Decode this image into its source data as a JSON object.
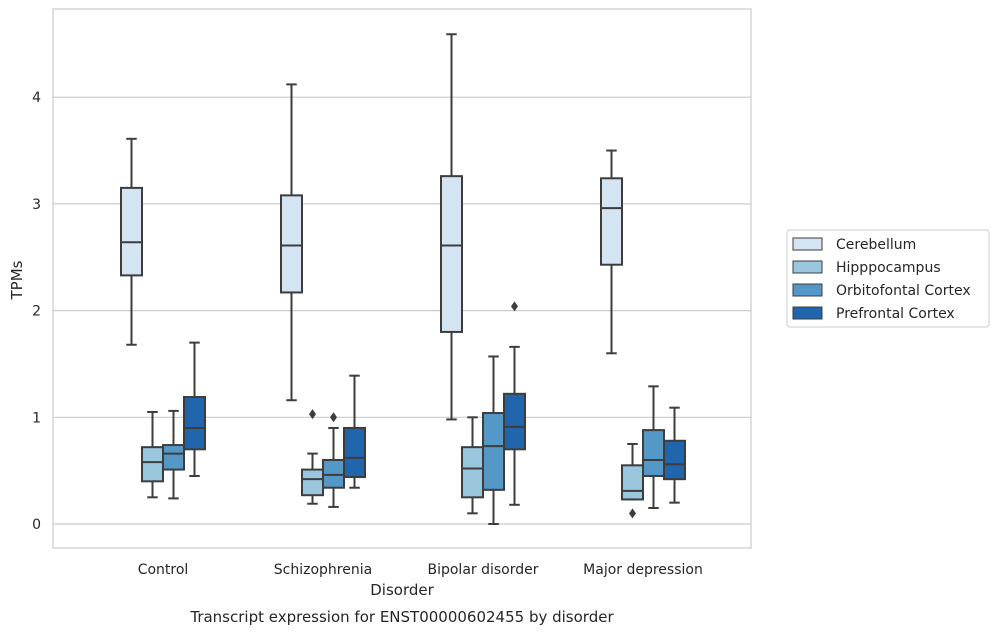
{
  "chart_data": {
    "type": "box",
    "title": "",
    "caption": "Transcript expression for ENST00000602455 by disorder",
    "xlabel": "Disorder",
    "ylabel": "TPMs",
    "ylim": [
      -0.22,
      4.85
    ],
    "yticks": [
      "0",
      "1",
      "2",
      "3",
      "4"
    ],
    "grid": "horizontal",
    "legend_position": "right",
    "categories": [
      "Control",
      "Schizophrenia",
      "Bipolar disorder",
      "Major depression"
    ],
    "series": [
      {
        "name": "Cerebellum",
        "color": "#d4e4f2",
        "boxes": [
          {
            "whisker_low": 1.68,
            "q1": 2.33,
            "median": 2.64,
            "q3": 3.15,
            "whisker_high": 3.61,
            "outliers": []
          },
          {
            "whisker_low": 1.16,
            "q1": 2.17,
            "median": 2.61,
            "q3": 3.08,
            "whisker_high": 4.12,
            "outliers": []
          },
          {
            "whisker_low": 0.98,
            "q1": 1.8,
            "median": 2.61,
            "q3": 3.26,
            "whisker_high": 4.59,
            "outliers": []
          },
          {
            "whisker_low": 1.6,
            "q1": 2.43,
            "median": 2.96,
            "q3": 3.24,
            "whisker_high": 3.5,
            "outliers": []
          }
        ]
      },
      {
        "name": "Hipppocampus",
        "color": "#9ac6de",
        "boxes": [
          {
            "whisker_low": 0.25,
            "q1": 0.4,
            "median": 0.58,
            "q3": 0.72,
            "whisker_high": 1.05,
            "outliers": []
          },
          {
            "whisker_low": 0.19,
            "q1": 0.27,
            "median": 0.42,
            "q3": 0.51,
            "whisker_high": 0.66,
            "outliers": [
              1.03
            ]
          },
          {
            "whisker_low": 0.1,
            "q1": 0.25,
            "median": 0.52,
            "q3": 0.72,
            "whisker_high": 1.0,
            "outliers": []
          },
          {
            "whisker_low": 0.23,
            "q1": 0.23,
            "median": 0.31,
            "q3": 0.55,
            "whisker_high": 0.75,
            "outliers": [
              0.1
            ]
          }
        ]
      },
      {
        "name": "Orbitofontal Cortex",
        "color": "#5498c8",
        "boxes": [
          {
            "whisker_low": 0.24,
            "q1": 0.51,
            "median": 0.66,
            "q3": 0.74,
            "whisker_high": 1.06,
            "outliers": []
          },
          {
            "whisker_low": 0.16,
            "q1": 0.34,
            "median": 0.46,
            "q3": 0.6,
            "whisker_high": 0.9,
            "outliers": [
              1.0
            ]
          },
          {
            "whisker_low": 0.0,
            "q1": 0.32,
            "median": 0.73,
            "q3": 1.04,
            "whisker_high": 1.57,
            "outliers": []
          },
          {
            "whisker_low": 0.15,
            "q1": 0.45,
            "median": 0.6,
            "q3": 0.88,
            "whisker_high": 1.29,
            "outliers": []
          }
        ]
      },
      {
        "name": "Prefrontal Cortex",
        "color": "#2166ac",
        "boxes": [
          {
            "whisker_low": 0.45,
            "q1": 0.7,
            "median": 0.9,
            "q3": 1.19,
            "whisker_high": 1.7,
            "outliers": []
          },
          {
            "whisker_low": 0.34,
            "q1": 0.44,
            "median": 0.62,
            "q3": 0.9,
            "whisker_high": 1.39,
            "outliers": []
          },
          {
            "whisker_low": 0.18,
            "q1": 0.7,
            "median": 0.91,
            "q3": 1.22,
            "whisker_high": 1.66,
            "outliers": [
              2.04
            ]
          },
          {
            "whisker_low": 0.2,
            "q1": 0.42,
            "median": 0.56,
            "q3": 0.78,
            "whisker_high": 1.09,
            "outliers": []
          }
        ]
      }
    ]
  }
}
